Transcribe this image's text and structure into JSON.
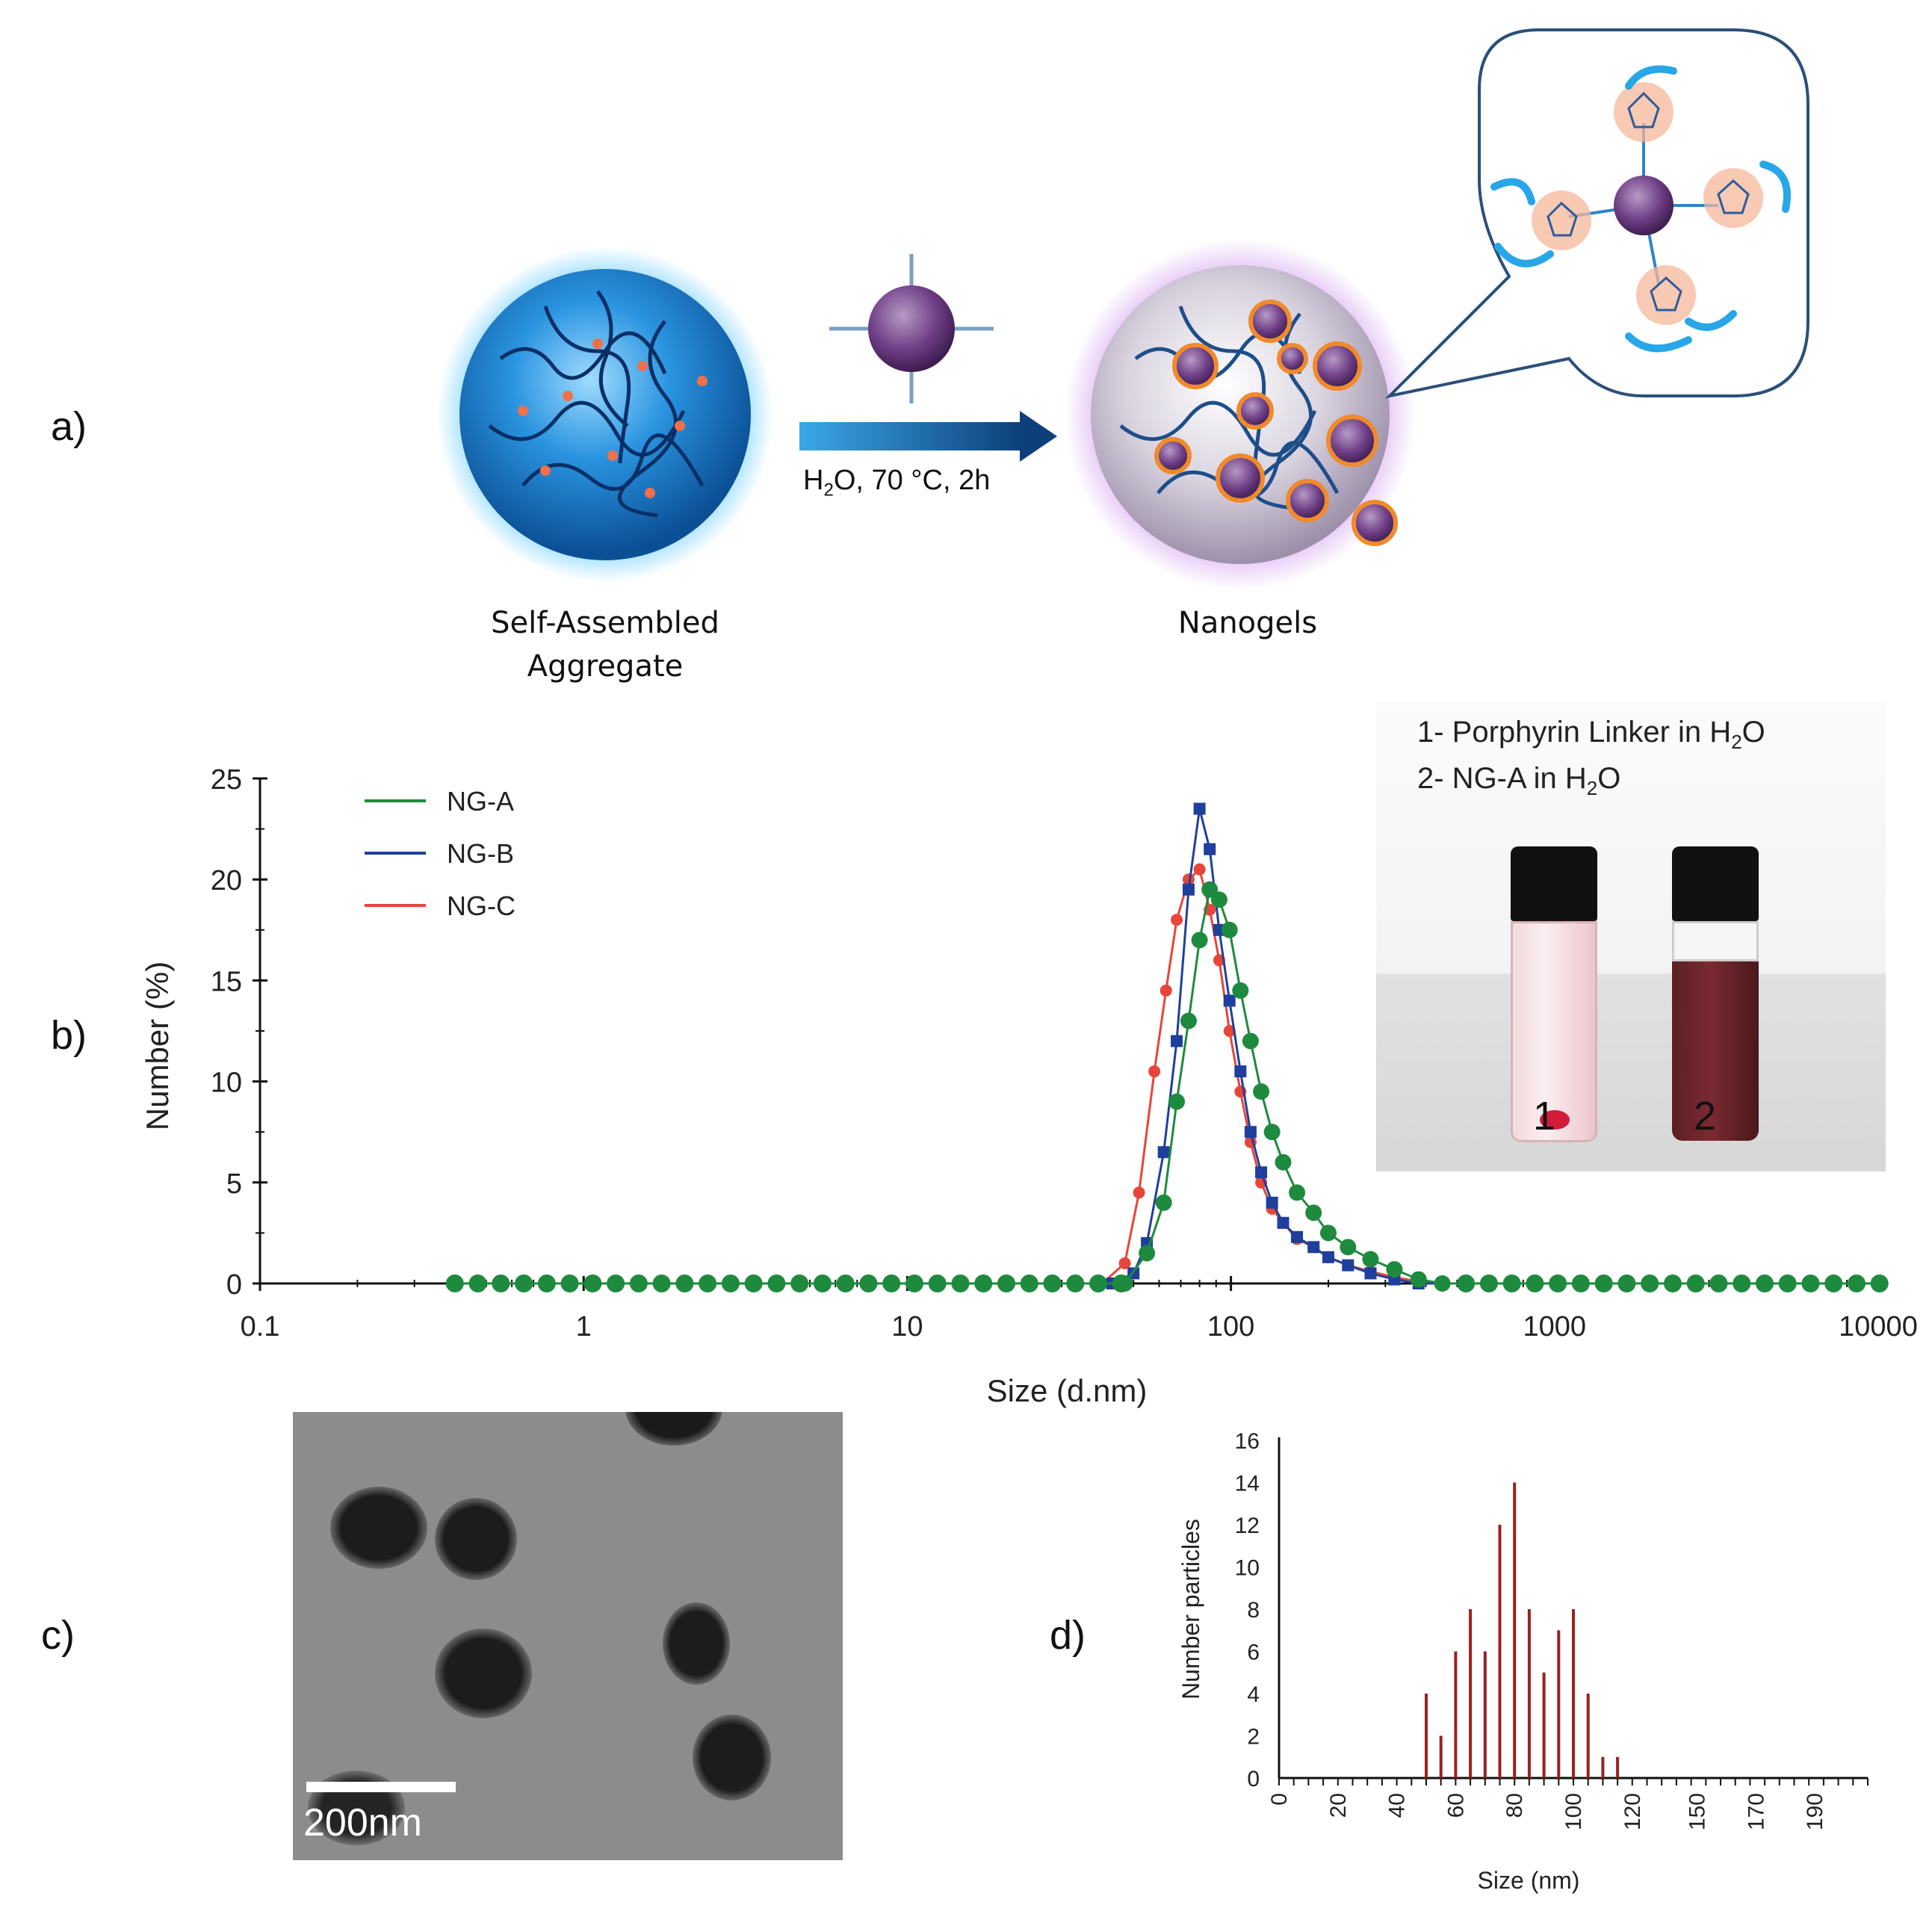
{
  "panels": {
    "a": {
      "label": "a)",
      "self_assembled": {
        "line1": "Self-Assembled",
        "line2": "Aggregate"
      },
      "nanogels": "Nanogels",
      "conditions": {
        "pre": "H",
        "sub2": "2",
        "post": "O, 70 °C, 2h"
      }
    },
    "b": {
      "label": "b)",
      "legend": [
        "NG-A",
        "NG-B",
        "NG-C"
      ],
      "photo": {
        "line1_pre": "1- Porphyrin Linker in H",
        "line1_sub": "2",
        "line1_post": "O",
        "line2_pre": "2- NG-A in H",
        "line2_sub": "2",
        "line2_post": "O",
        "vial1": "1",
        "vial2": "2"
      }
    },
    "c": {
      "label": "c)",
      "scale_bar": "200nm"
    },
    "d": {
      "label": "d)"
    }
  },
  "colors": {
    "ng_a": "#1e8a3e",
    "ng_b": "#1f3f9c",
    "ng_c": "#e8453a",
    "bars": "#9b2020",
    "sphere_blue": "#1d88d8",
    "sphere_purple": "#7a4a8e"
  },
  "chart_data": [
    {
      "type": "line",
      "xlabel": "Size (d.nm)",
      "ylabel": "Number (%)",
      "xscale": "log",
      "xlim": [
        0.1,
        10000
      ],
      "ylim": [
        0,
        25
      ],
      "x_ticks": [
        "0.1",
        "1",
        "10",
        "100",
        "1000",
        "10000"
      ],
      "y_ticks": [
        "0",
        "5",
        "10",
        "15",
        "20",
        "25"
      ],
      "series": [
        {
          "name": "NG-A",
          "x": [
            0.4,
            47,
            55,
            62,
            68,
            74,
            80,
            86,
            92,
            99,
            107,
            115,
            124,
            134,
            145,
            160,
            180,
            200,
            230,
            270,
            320,
            380,
            450,
            10000
          ],
          "y": [
            0,
            0,
            1.5,
            4,
            9,
            13,
            17,
            19.5,
            19,
            17.5,
            14.5,
            12,
            9.5,
            7.5,
            6,
            4.5,
            3.5,
            2.5,
            1.8,
            1.2,
            0.7,
            0.2,
            0,
            0
          ]
        },
        {
          "name": "NG-B",
          "x": [
            0.4,
            43,
            50,
            55,
            62,
            68,
            74,
            80,
            86,
            92,
            99,
            107,
            115,
            124,
            134,
            145,
            160,
            180,
            200,
            230,
            270,
            320,
            380,
            450,
            10000
          ],
          "y": [
            0,
            0,
            0.5,
            2,
            6.5,
            12,
            19.5,
            23.5,
            21.5,
            17.5,
            14,
            10.5,
            7.5,
            5.5,
            4,
            3,
            2.3,
            1.8,
            1.3,
            0.9,
            0.5,
            0.2,
            0,
            0,
            0
          ]
        },
        {
          "name": "NG-C",
          "x": [
            0.4,
            40,
            47,
            52,
            58,
            63,
            68,
            74,
            80,
            86,
            92,
            99,
            107,
            115,
            124,
            134,
            145,
            160,
            180,
            200,
            230,
            270,
            320,
            380,
            450,
            10000
          ],
          "y": [
            0,
            0,
            1,
            4.5,
            10.5,
            14.5,
            18,
            20,
            20.5,
            18.5,
            16,
            12.5,
            9.5,
            7,
            5,
            3.7,
            3,
            2.2,
            1.8,
            1.3,
            0.9,
            0.6,
            0.3,
            0.1,
            0,
            0
          ]
        }
      ]
    },
    {
      "type": "bar",
      "xlabel": "Size (nm)",
      "ylabel": "Number particles",
      "xlim": [
        0,
        200
      ],
      "ylim": [
        0,
        16
      ],
      "x_ticks": [
        "0",
        "20",
        "40",
        "60",
        "80",
        "100",
        "120",
        "150",
        "170",
        "190"
      ],
      "y_ticks": [
        "0",
        "2",
        "4",
        "6",
        "8",
        "10",
        "12",
        "14",
        "16"
      ],
      "x": [
        50,
        55,
        60,
        65,
        70,
        75,
        80,
        85,
        90,
        95,
        100,
        105,
        110,
        115
      ],
      "values": [
        4,
        2,
        6,
        8,
        6,
        12,
        14,
        8,
        5,
        7,
        8,
        4,
        1,
        1
      ]
    }
  ]
}
